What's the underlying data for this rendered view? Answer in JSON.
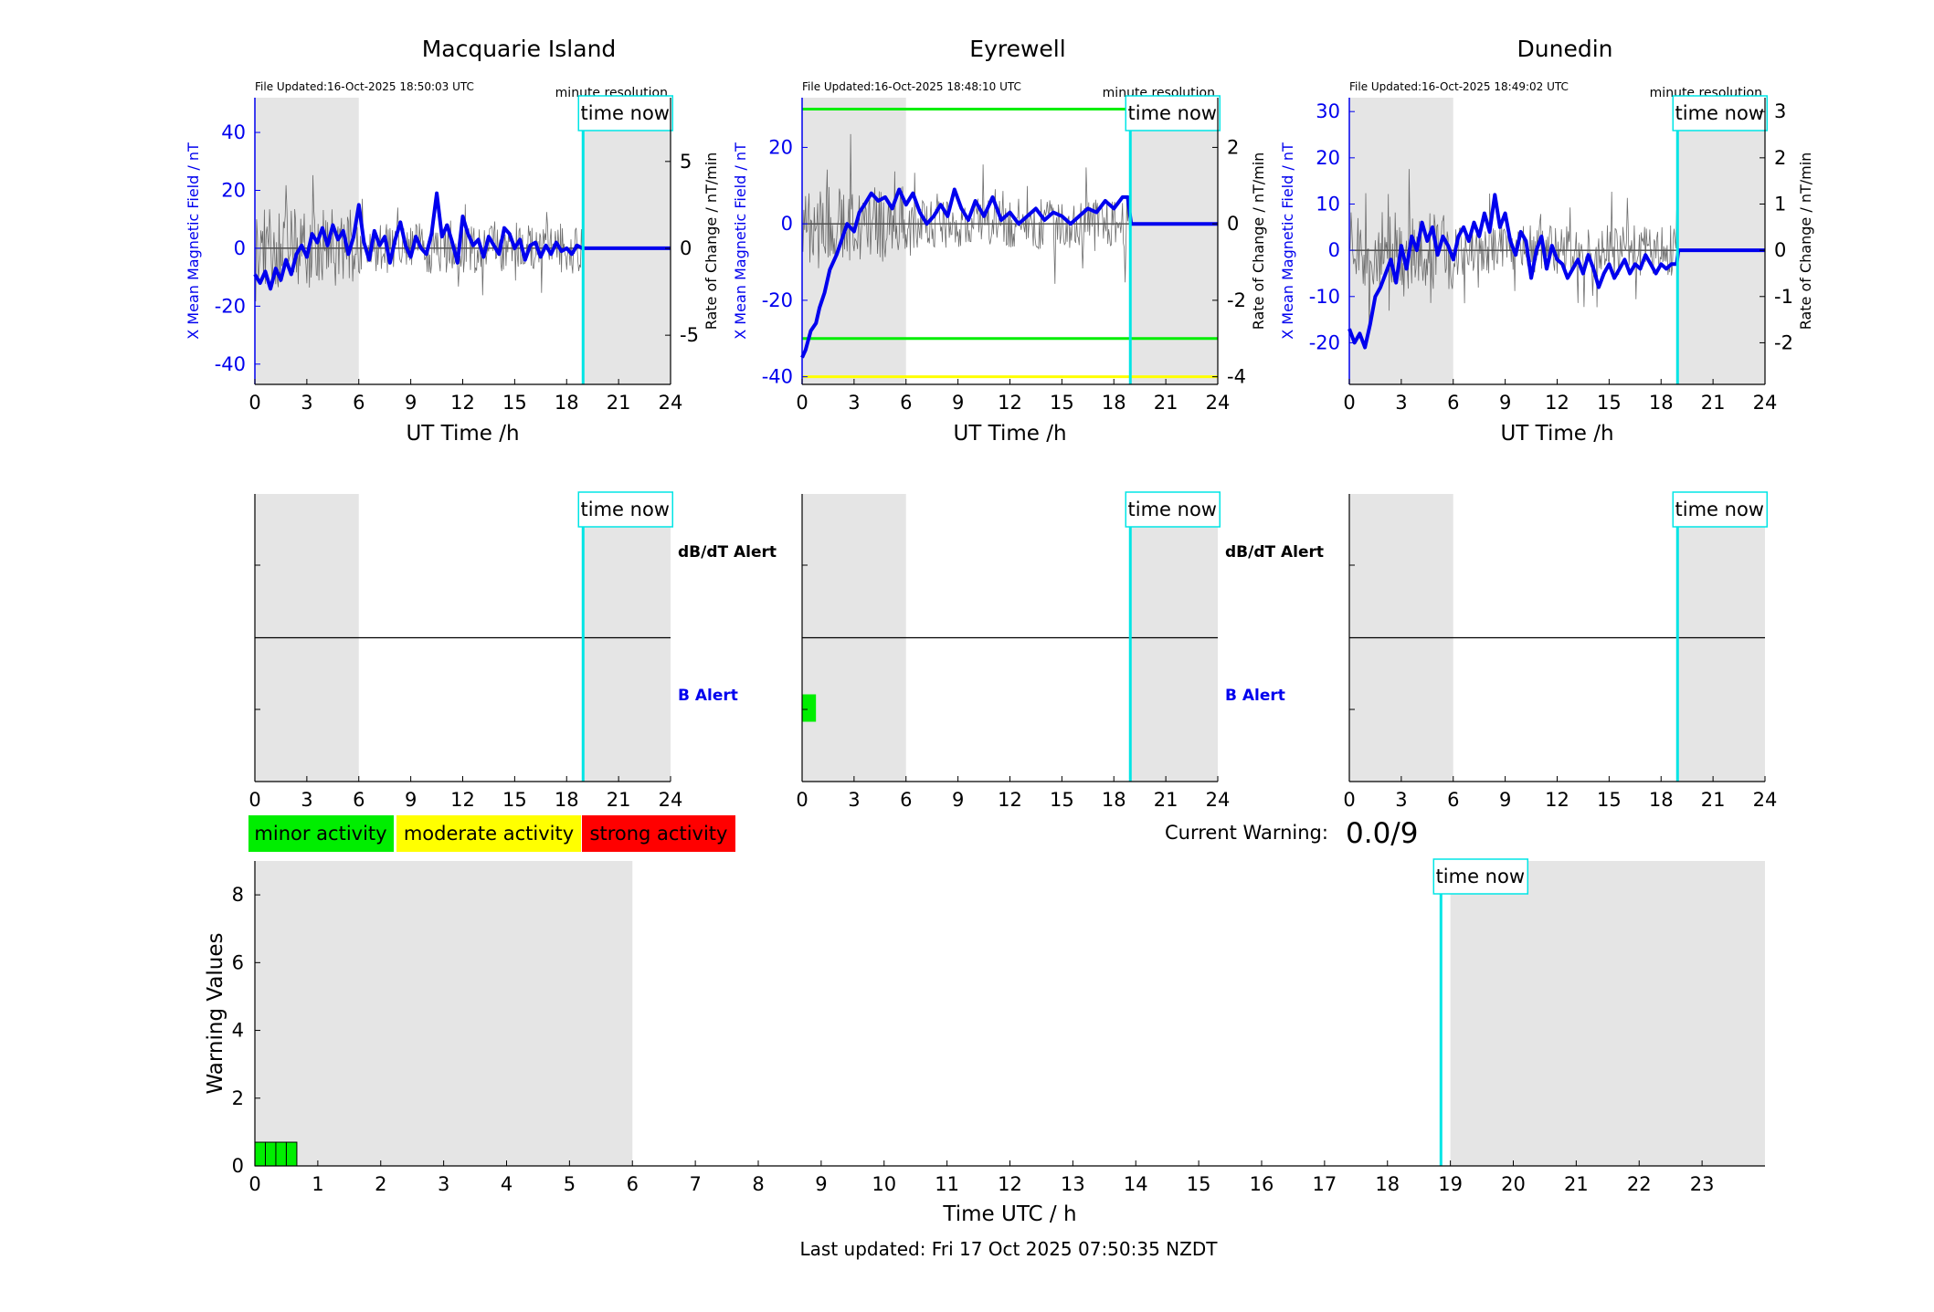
{
  "colors": {
    "field": "#0000ee",
    "rate": "#555555",
    "time_now": "#00e5e5",
    "shade": "#e5e5e5",
    "minor": "#00ee00",
    "moderate": "#ffff00",
    "strong": "#ff0000",
    "b_alert_label": "#0000ee"
  },
  "common": {
    "time_now_label": "time now",
    "resolution_label": "minute resolution",
    "x_label": "UT Time /h",
    "y_label_left": "X Mean Magnetic Field / nT",
    "y_label_right": "Rate of Change / nT/min",
    "alert_dbdt_label": "dB/dT Alert",
    "alert_b_label": "B Alert",
    "time_now_hour": 18.95,
    "shade_hours": [
      [
        0,
        6
      ],
      [
        19,
        24
      ]
    ]
  },
  "legend": {
    "minor": "minor activity",
    "moderate": "moderate activity",
    "strong": "strong activity"
  },
  "current_warning": {
    "label": "Current Warning:",
    "value": "0.0/9"
  },
  "footer": {
    "last_updated": "Last updated: Fri 17 Oct 2025 07:50:35 NZDT"
  },
  "chart_data": [
    {
      "type": "line",
      "title": "Macquarie Island",
      "file_updated": "File Updated:16-Oct-2025 18:50:03 UTC",
      "xlabel": "UT Time /h",
      "ylabel": "X Mean Magnetic Field / nT",
      "ylabel_right": "Rate of Change / nT/min",
      "xlim": [
        0,
        24
      ],
      "ylim": [
        -47,
        52
      ],
      "yticks": [
        -40,
        -20,
        0,
        20,
        40
      ],
      "ylim_right": [
        -7.83,
        8.67
      ],
      "yticks_right": [
        -5,
        0,
        5
      ],
      "xticks": [
        0,
        3,
        6,
        9,
        12,
        15,
        18,
        21,
        24
      ],
      "thresholds": [],
      "series": [
        {
          "x": [
            0,
            0.3,
            0.6,
            0.9,
            1.2,
            1.5,
            1.8,
            2.1,
            2.4,
            2.7,
            3.0,
            3.3,
            3.6,
            3.9,
            4.2,
            4.5,
            4.8,
            5.1,
            5.4,
            5.7,
            6.0,
            6.3,
            6.6,
            6.9,
            7.2,
            7.5,
            7.8,
            8.1,
            8.4,
            8.7,
            9.0,
            9.3,
            9.6,
            9.9,
            10.2,
            10.5,
            10.8,
            11.1,
            11.4,
            11.7,
            12.0,
            12.3,
            12.6,
            12.9,
            13.2,
            13.5,
            13.8,
            14.1,
            14.4,
            14.7,
            15.0,
            15.3,
            15.6,
            15.9,
            16.2,
            16.5,
            16.8,
            17.1,
            17.4,
            17.7,
            18.0,
            18.3,
            18.6,
            18.9,
            19.0,
            24
          ],
          "values": [
            -9,
            -12,
            -8,
            -14,
            -7,
            -11,
            -4,
            -9,
            -2,
            1,
            -3,
            5,
            2,
            7,
            1,
            8,
            3,
            6,
            -2,
            4,
            15,
            2,
            -4,
            6,
            1,
            4,
            -5,
            3,
            9,
            1,
            -3,
            4,
            0,
            -2,
            5,
            19,
            4,
            8,
            2,
            -5,
            11,
            5,
            1,
            3,
            -3,
            4,
            1,
            -2,
            7,
            5,
            0,
            3,
            -4,
            1,
            2,
            -3,
            1,
            -2,
            2,
            -1,
            0,
            -2,
            1,
            0,
            0,
            0
          ]
        }
      ]
    },
    {
      "type": "line",
      "title": "Eyrewell",
      "file_updated": "File Updated:16-Oct-2025 18:48:10 UTC",
      "xlabel": "UT Time /h",
      "ylabel": "X Mean Magnetic Field / nT",
      "ylabel_right": "Rate of Change / nT/min",
      "xlim": [
        0,
        24
      ],
      "ylim": [
        -42,
        33
      ],
      "yticks": [
        -40,
        -20,
        0,
        20
      ],
      "ylim_right": [
        -4.2,
        3.3
      ],
      "yticks_right": [
        -4,
        -2,
        0,
        2
      ],
      "xticks": [
        0,
        3,
        6,
        9,
        12,
        15,
        18,
        21,
        24
      ],
      "thresholds": [
        {
          "y": 30,
          "color": "#00ee00"
        },
        {
          "y": -30,
          "color": "#00ee00"
        },
        {
          "y": -40,
          "color": "#ffff00"
        }
      ],
      "series": [
        {
          "x": [
            0,
            0.2,
            0.5,
            0.8,
            1.0,
            1.3,
            1.6,
            2.0,
            2.3,
            2.6,
            3.0,
            3.3,
            3.6,
            4.0,
            4.4,
            4.8,
            5.2,
            5.6,
            6.0,
            6.4,
            6.8,
            7.2,
            7.6,
            8.0,
            8.4,
            8.8,
            9.2,
            9.6,
            10.0,
            10.5,
            11.0,
            11.5,
            12.0,
            12.5,
            13.0,
            13.5,
            14.0,
            14.5,
            15.0,
            15.5,
            16.0,
            16.5,
            17.0,
            17.5,
            18.0,
            18.5,
            18.8,
            19.0,
            24
          ],
          "values": [
            -35,
            -33,
            -28,
            -26,
            -22,
            -18,
            -12,
            -8,
            -4,
            0,
            -2,
            3,
            5,
            8,
            6,
            7,
            4,
            9,
            5,
            8,
            3,
            0,
            2,
            5,
            2,
            9,
            4,
            1,
            6,
            2,
            7,
            1,
            3,
            0,
            2,
            4,
            1,
            3,
            2,
            0,
            2,
            4,
            3,
            6,
            4,
            7,
            7,
            0,
            0
          ]
        }
      ]
    },
    {
      "type": "line",
      "title": "Dunedin",
      "file_updated": "File Updated:16-Oct-2025 18:49:02 UTC",
      "xlabel": "UT Time /h",
      "ylabel": "X Mean Magnetic Field / nT",
      "ylabel_right": "Rate of Change / nT/min",
      "xlim": [
        0,
        24
      ],
      "ylim": [
        -29,
        33
      ],
      "yticks": [
        -20,
        -10,
        0,
        10,
        20,
        30
      ],
      "ylim_right": [
        -2.9,
        3.3
      ],
      "yticks_right": [
        -2,
        -1,
        0,
        1,
        2,
        3
      ],
      "xticks": [
        0,
        3,
        6,
        9,
        12,
        15,
        18,
        21,
        24
      ],
      "thresholds": [],
      "series": [
        {
          "x": [
            0,
            0.3,
            0.6,
            0.9,
            1.2,
            1.5,
            1.8,
            2.1,
            2.4,
            2.7,
            3.0,
            3.3,
            3.6,
            3.9,
            4.2,
            4.5,
            4.8,
            5.1,
            5.4,
            5.7,
            6.0,
            6.3,
            6.6,
            6.9,
            7.2,
            7.5,
            7.8,
            8.1,
            8.4,
            8.7,
            9.0,
            9.3,
            9.6,
            9.9,
            10.2,
            10.5,
            10.8,
            11.1,
            11.4,
            11.7,
            12.0,
            12.3,
            12.6,
            12.9,
            13.2,
            13.5,
            13.8,
            14.1,
            14.4,
            14.7,
            15.0,
            15.3,
            15.6,
            15.9,
            16.2,
            16.5,
            16.8,
            17.1,
            17.4,
            17.7,
            18.0,
            18.3,
            18.6,
            18.9,
            19.0,
            24
          ],
          "values": [
            -17,
            -20,
            -18,
            -21,
            -16,
            -10,
            -8,
            -5,
            -2,
            -7,
            1,
            -4,
            3,
            0,
            6,
            2,
            5,
            -1,
            3,
            1,
            -2,
            3,
            5,
            2,
            6,
            3,
            8,
            4,
            12,
            5,
            8,
            2,
            -1,
            4,
            2,
            -6,
            0,
            3,
            -4,
            1,
            -2,
            -3,
            -6,
            -4,
            -2,
            -5,
            -1,
            -4,
            -8,
            -5,
            -3,
            -6,
            -4,
            -2,
            -5,
            -3,
            -4,
            -1,
            -3,
            -5,
            -3,
            -4,
            -3,
            -3,
            0,
            0
          ]
        }
      ]
    },
    {
      "type": "bar",
      "title": "",
      "xlabel": "Time UTC / h",
      "ylabel": "Warning Values",
      "xlim": [
        0,
        24
      ],
      "ylim": [
        0,
        9
      ],
      "yticks": [
        0,
        2,
        4,
        6,
        8
      ],
      "xticks": [
        0,
        1,
        2,
        3,
        4,
        5,
        6,
        7,
        8,
        9,
        10,
        11,
        12,
        13,
        14,
        15,
        16,
        17,
        18,
        19,
        20,
        21,
        22,
        23
      ],
      "time_now_hour": 18.85,
      "shade_hours": [
        [
          0,
          6
        ],
        [
          19,
          24
        ]
      ],
      "bars": [
        {
          "x": 0.0,
          "width": 0.167,
          "value": 0.7
        },
        {
          "x": 0.167,
          "width": 0.167,
          "value": 0.7
        },
        {
          "x": 0.333,
          "width": 0.167,
          "value": 0.7
        },
        {
          "x": 0.5,
          "width": 0.167,
          "value": 0.7
        }
      ]
    }
  ],
  "alert_panels": [
    {
      "station": "Macquarie Island",
      "b_alert_bars": [],
      "xticks": [
        0,
        3,
        6,
        9,
        12,
        15,
        18,
        21,
        24
      ]
    },
    {
      "station": "Eyrewell",
      "b_alert_bars": [
        {
          "x0": 0,
          "x1": 0.8,
          "color": "#00ee00"
        }
      ],
      "xticks": [
        0,
        3,
        6,
        9,
        12,
        15,
        18,
        21,
        24
      ]
    },
    {
      "station": "Dunedin",
      "b_alert_bars": [],
      "xticks": [
        0,
        3,
        6,
        9,
        12,
        15,
        18,
        21,
        24
      ]
    }
  ]
}
